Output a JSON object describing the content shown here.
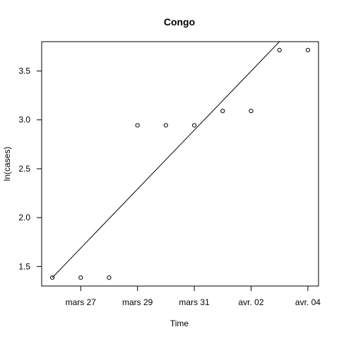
{
  "chart_data": {
    "type": "scatter",
    "title": "Congo",
    "xlabel": "Time",
    "ylabel": "ln(cases)",
    "x_tick_labels": [
      "mars 27",
      "mars 29",
      "mars 31",
      "avr. 02",
      "avr. 04"
    ],
    "x_tick_dates": [
      "2020-03-27",
      "2020-03-29",
      "2020-03-31",
      "2020-04-02",
      "2020-04-04"
    ],
    "y_ticks": [
      1.5,
      2.0,
      2.5,
      3.0,
      3.5
    ],
    "y_tick_labels": [
      "1.5",
      "2.0",
      "2.5",
      "3.0",
      "3.5"
    ],
    "xlim": [
      "2020-03-25T15:00",
      "2020-04-04T09:00"
    ],
    "ylim": [
      1.3,
      3.8
    ],
    "points": [
      {
        "x": "2020-03-26",
        "y": 1.386
      },
      {
        "x": "2020-03-27",
        "y": 1.386
      },
      {
        "x": "2020-03-28",
        "y": 1.386
      },
      {
        "x": "2020-03-29",
        "y": 2.944
      },
      {
        "x": "2020-03-30",
        "y": 2.944
      },
      {
        "x": "2020-03-31",
        "y": 2.944
      },
      {
        "x": "2020-04-01",
        "y": 3.091
      },
      {
        "x": "2020-04-02",
        "y": 3.091
      },
      {
        "x": "2020-04-03",
        "y": 3.714
      },
      {
        "x": "2020-04-04",
        "y": 3.714
      }
    ],
    "fit_line": {
      "from": {
        "x": "2020-03-26",
        "y": 1.386
      },
      "to": {
        "x": "2020-04-03",
        "y": 3.8
      }
    },
    "grid": false,
    "legend": "none"
  }
}
